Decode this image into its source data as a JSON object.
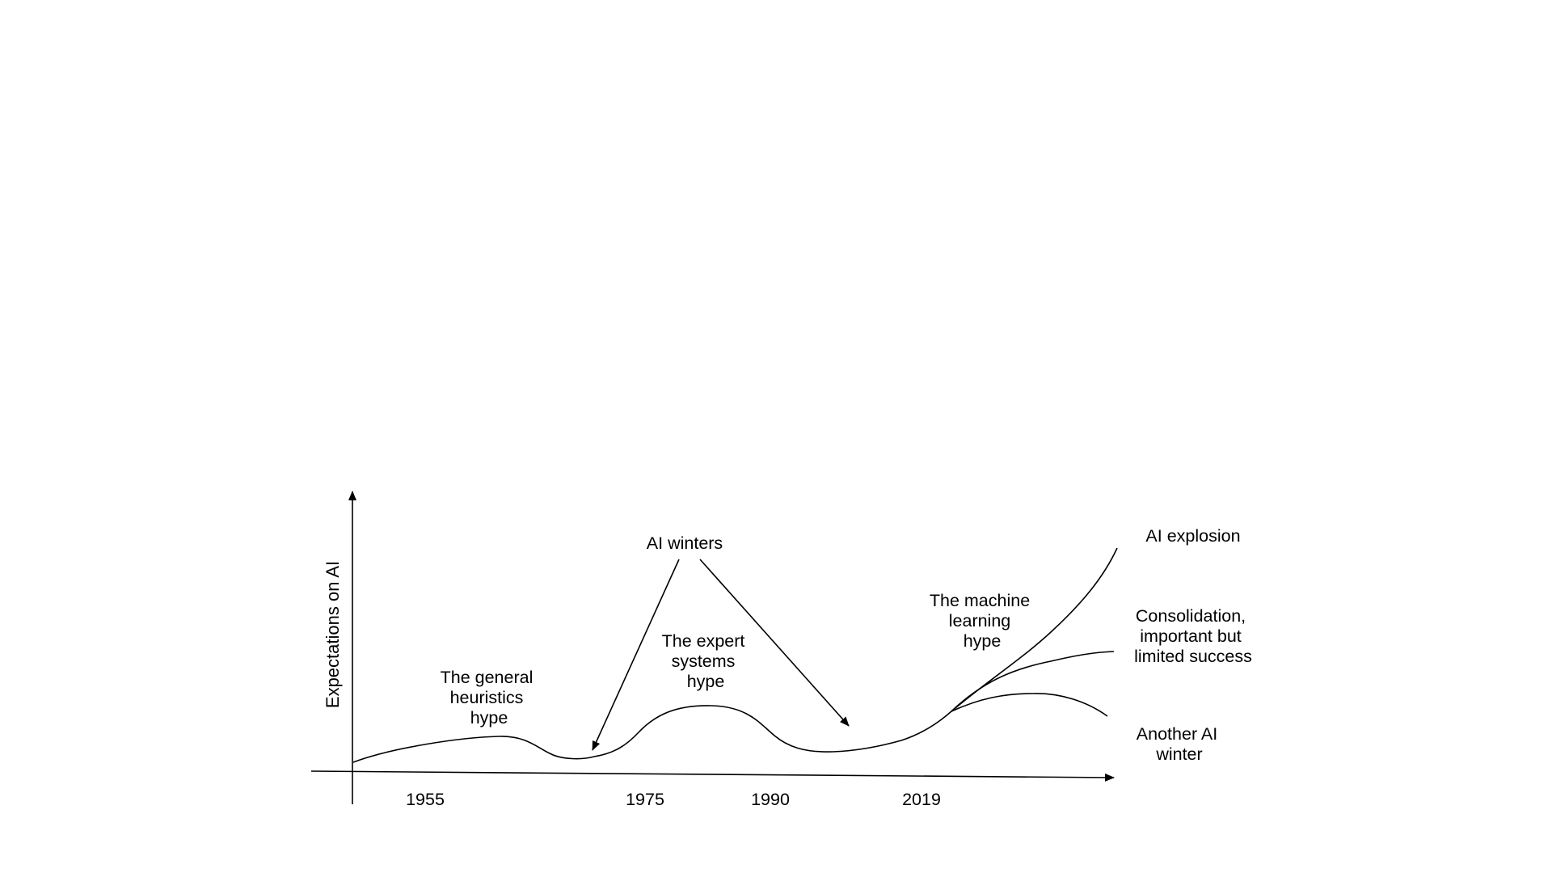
{
  "y_axis_label": "Expectations on AI",
  "x_ticks": [
    "1955",
    "1975",
    "1990",
    "2019"
  ],
  "labels": {
    "general_heuristics": [
      "The general",
      "heuristics",
      "hype"
    ],
    "ai_winters": "AI winters",
    "expert_systems": [
      "The expert",
      "systems",
      "hype"
    ],
    "machine_learning": [
      "The machine",
      "learning",
      "hype"
    ],
    "ai_explosion": "AI explosion",
    "consolidation": [
      "Consolidation,",
      "important but",
      "limited success"
    ],
    "another_winter": [
      "Another AI",
      "winter"
    ]
  },
  "colors": {
    "ink": "#000000",
    "background": "#ffffff"
  }
}
